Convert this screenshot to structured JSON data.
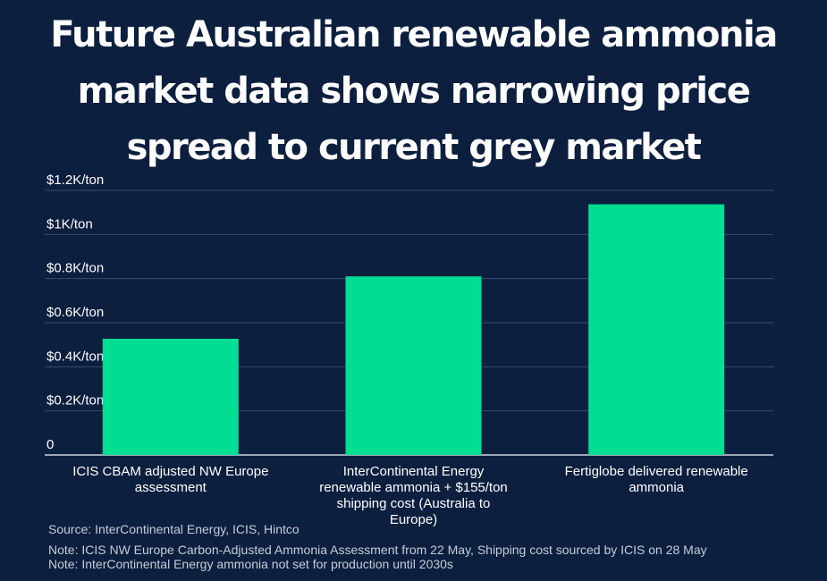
{
  "title_lines": [
    "Future Australian renewable ammonia",
    "market data shows narrowing price",
    "spread to current grey market"
  ],
  "colors": {
    "background": "#0c1f3f",
    "bar": "#00de93",
    "grid": "#3a4d6b",
    "text": "#ffffff",
    "footer_text": "#c6ccd6"
  },
  "chart_data": {
    "type": "bar",
    "title": "Future Australian renewable ammonia market data shows narrowing price spread to current grey market",
    "xlabel": "",
    "ylabel": "",
    "ylim": [
      0,
      1200
    ],
    "yticks": [
      0,
      200,
      400,
      600,
      800,
      1000,
      1200
    ],
    "ytick_labels": [
      "0",
      "$0.2K/ton",
      "$0.4K/ton",
      "$0.6K/ton",
      "$0.8K/ton",
      "$1K/ton",
      "$1.2K/ton"
    ],
    "grid": true,
    "categories": [
      [
        "ICIS CBAM adjusted NW Europe",
        "assessment"
      ],
      [
        "InterContinental Energy",
        "renewable ammonia + $155/ton",
        "shipping cost (Australia to",
        "Europe)"
      ],
      [
        "Fertiglobe delivered renewable",
        "ammonia"
      ]
    ],
    "values": [
      527,
      810,
      1137
    ]
  },
  "footer": {
    "source": "Source: InterContinental Energy, ICIS, Hintco",
    "note1": "Note: ICIS NW Europe Carbon-Adjusted Ammonia Assessment from 22 May, Shipping cost sourced by ICIS on 28 May",
    "note2": "Note: InterContinental Energy ammonia not set for production until 2030s"
  }
}
